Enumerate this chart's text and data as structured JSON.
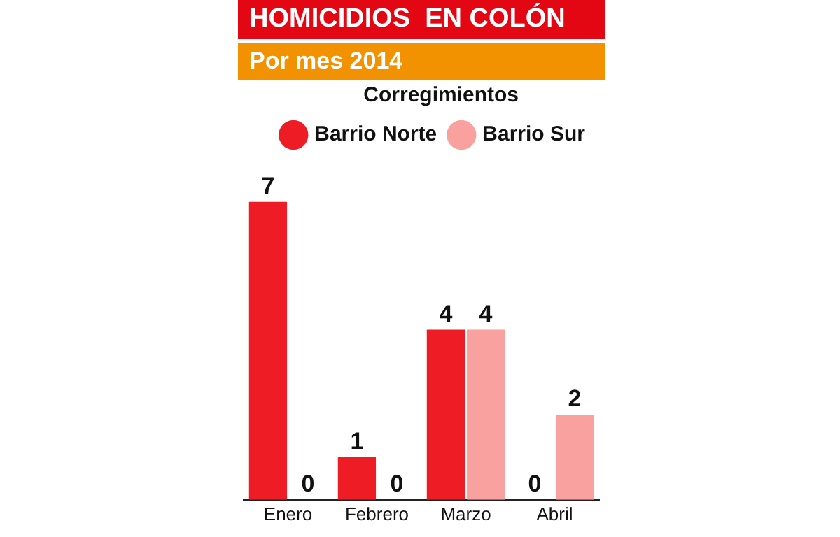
{
  "chart_data": {
    "type": "bar",
    "title": "HOMICIDIOS  EN COLÓN",
    "subtitle": "Por mes 2014",
    "legend_title": "Corregimientos",
    "categories": [
      "Enero",
      "Febrero",
      "Marzo",
      "Abril"
    ],
    "series": [
      {
        "name": "Barrio Norte",
        "color": "#ee1c25",
        "values": [
          7,
          1,
          4,
          0
        ]
      },
      {
        "name": "Barrio Sur",
        "color": "#f9a19e",
        "values": [
          0,
          0,
          4,
          2
        ]
      }
    ],
    "data_labels": true,
    "legend": "top right",
    "grid": false
  }
}
